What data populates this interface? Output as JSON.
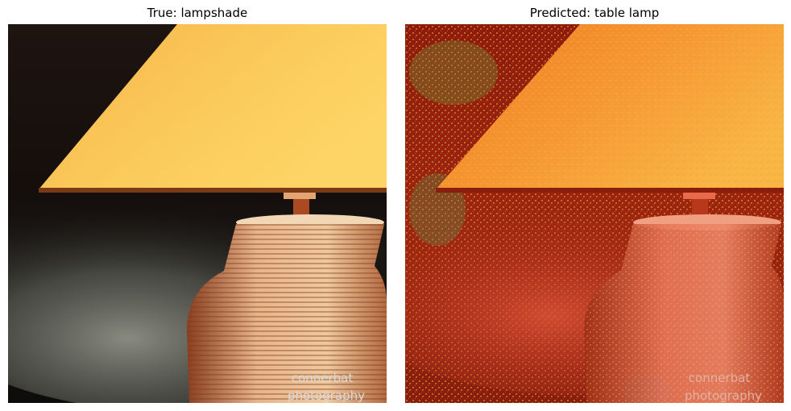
{
  "panels": [
    {
      "title": "True: lampshade",
      "watermark_line1": "connerbat",
      "watermark_line2": "photography"
    },
    {
      "title": "Predicted: table lamp",
      "watermark_line1": "connerbat",
      "watermark_line2": "photography"
    }
  ]
}
